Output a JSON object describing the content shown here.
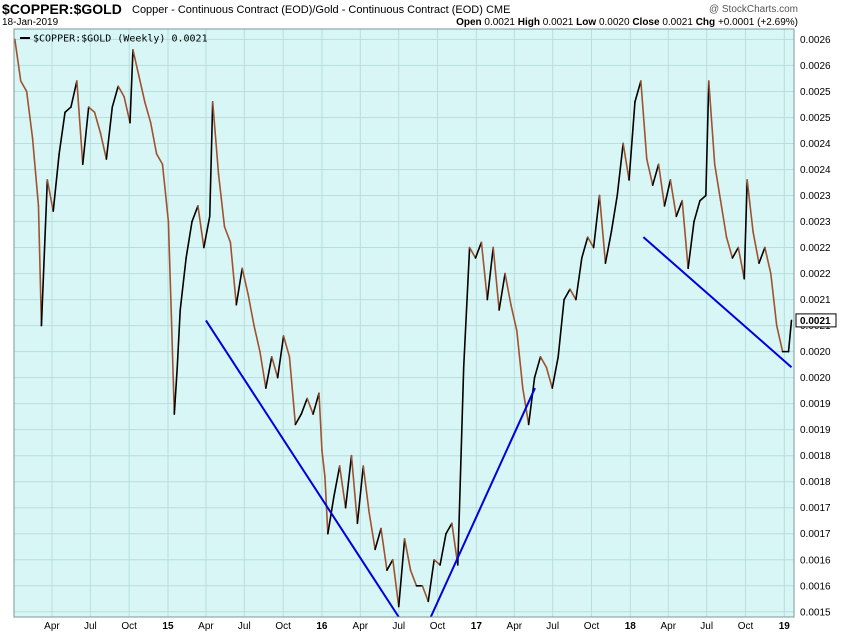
{
  "header": {
    "symbol": "$COPPER:$GOLD",
    "description": "Copper - Continuous Contract (EOD)/Gold - Continuous Contract (EOD) CME",
    "date": "18-Jan-2019",
    "credit": "@ StockCharts.com",
    "open_label": "Open",
    "open": "0.0021",
    "high_label": "High",
    "high": "0.0021",
    "low_label": "Low",
    "low": "0.0020",
    "close_label": "Close",
    "close": "0.0021",
    "chg_label": "Chg",
    "chg": "+0.0001 (+2.69%)"
  },
  "colors": {
    "plot_background": "#d8f6f6",
    "up_line": "#000000",
    "down_line": "#a0522d",
    "trendline": "#0000dd",
    "grid": "#b8dede"
  },
  "chart_data": {
    "type": "line",
    "legend": "$COPPER:$GOLD (Weekly) 0.0021",
    "last_value_label": "0.0021",
    "grid": true,
    "legend_position": "top-left",
    "x_axis_type": "date",
    "ylim": [
      0.00149,
      0.00262
    ],
    "y_ticks": [
      {
        "value": 0.0015,
        "label": "0.0015"
      },
      {
        "value": 0.00155,
        "label": "0.0016"
      },
      {
        "value": 0.0016,
        "label": "0.0016"
      },
      {
        "value": 0.00165,
        "label": "0.0017"
      },
      {
        "value": 0.0017,
        "label": "0.0017"
      },
      {
        "value": 0.00175,
        "label": "0.0018"
      },
      {
        "value": 0.0018,
        "label": "0.0018"
      },
      {
        "value": 0.00185,
        "label": "0.0019"
      },
      {
        "value": 0.0019,
        "label": "0.0019"
      },
      {
        "value": 0.00195,
        "label": "0.0020"
      },
      {
        "value": 0.002,
        "label": "0.0020"
      },
      {
        "value": 0.00205,
        "label": "0.0021"
      },
      {
        "value": 0.0021,
        "label": "0.0021"
      },
      {
        "value": 0.00215,
        "label": "0.0022"
      },
      {
        "value": 0.0022,
        "label": "0.0022"
      },
      {
        "value": 0.00225,
        "label": "0.0023"
      },
      {
        "value": 0.0023,
        "label": "0.0023"
      },
      {
        "value": 0.00235,
        "label": "0.0024"
      },
      {
        "value": 0.0024,
        "label": "0.0024"
      },
      {
        "value": 0.00245,
        "label": "0.0025"
      },
      {
        "value": 0.0025,
        "label": "0.0025"
      },
      {
        "value": 0.00255,
        "label": "0.0026"
      },
      {
        "value": 0.0026,
        "label": "0.0026"
      }
    ],
    "x_ticks": [
      {
        "date": "2014-04-01",
        "label": "Apr",
        "major": false
      },
      {
        "date": "2014-07-01",
        "label": "Jul",
        "major": false
      },
      {
        "date": "2014-10-01",
        "label": "Oct",
        "major": false
      },
      {
        "date": "2015-01-01",
        "label": "15",
        "major": true
      },
      {
        "date": "2015-04-01",
        "label": "Apr",
        "major": false
      },
      {
        "date": "2015-07-01",
        "label": "Jul",
        "major": false
      },
      {
        "date": "2015-10-01",
        "label": "Oct",
        "major": false
      },
      {
        "date": "2016-01-01",
        "label": "16",
        "major": true
      },
      {
        "date": "2016-04-01",
        "label": "Apr",
        "major": false
      },
      {
        "date": "2016-07-01",
        "label": "Jul",
        "major": false
      },
      {
        "date": "2016-10-01",
        "label": "Oct",
        "major": false
      },
      {
        "date": "2017-01-01",
        "label": "17",
        "major": true
      },
      {
        "date": "2017-04-01",
        "label": "Apr",
        "major": false
      },
      {
        "date": "2017-07-01",
        "label": "Jul",
        "major": false
      },
      {
        "date": "2017-10-01",
        "label": "Oct",
        "major": false
      },
      {
        "date": "2018-01-01",
        "label": "18",
        "major": true
      },
      {
        "date": "2018-04-01",
        "label": "Apr",
        "major": false
      },
      {
        "date": "2018-07-01",
        "label": "Jul",
        "major": false
      },
      {
        "date": "2018-10-01",
        "label": "Oct",
        "major": false
      },
      {
        "date": "2019-01-01",
        "label": "19",
        "major": true
      }
    ],
    "series": [
      {
        "values": [
          [
            "2014-01-03",
            0.0026
          ],
          [
            "2014-01-17",
            0.00252
          ],
          [
            "2014-01-31",
            0.0025
          ],
          [
            "2014-02-14",
            0.00241
          ],
          [
            "2014-02-28",
            0.00228
          ],
          [
            "2014-03-07",
            0.00205
          ],
          [
            "2014-03-21",
            0.00233
          ],
          [
            "2014-04-04",
            0.00227
          ],
          [
            "2014-04-18",
            0.00238
          ],
          [
            "2014-05-02",
            0.00246
          ],
          [
            "2014-05-16",
            0.00247
          ],
          [
            "2014-05-30",
            0.00252
          ],
          [
            "2014-06-13",
            0.00236
          ],
          [
            "2014-06-27",
            0.00247
          ],
          [
            "2014-07-11",
            0.00246
          ],
          [
            "2014-07-25",
            0.00242
          ],
          [
            "2014-08-08",
            0.00237
          ],
          [
            "2014-08-22",
            0.00247
          ],
          [
            "2014-09-05",
            0.00251
          ],
          [
            "2014-09-19",
            0.00249
          ],
          [
            "2014-10-03",
            0.00244
          ],
          [
            "2014-10-10",
            0.00258
          ],
          [
            "2014-10-24",
            0.00253
          ],
          [
            "2014-11-07",
            0.00248
          ],
          [
            "2014-11-21",
            0.00244
          ],
          [
            "2014-12-05",
            0.00238
          ],
          [
            "2014-12-19",
            0.00236
          ],
          [
            "2015-01-02",
            0.00225
          ],
          [
            "2015-01-09",
            0.00207
          ],
          [
            "2015-01-16",
            0.00188
          ],
          [
            "2015-01-23",
            0.00197
          ],
          [
            "2015-01-30",
            0.00208
          ],
          [
            "2015-02-13",
            0.00218
          ],
          [
            "2015-02-27",
            0.00225
          ],
          [
            "2015-03-13",
            0.00228
          ],
          [
            "2015-03-27",
            0.0022
          ],
          [
            "2015-04-10",
            0.00226
          ],
          [
            "2015-04-17",
            0.00248
          ],
          [
            "2015-05-01",
            0.00234
          ],
          [
            "2015-05-15",
            0.00224
          ],
          [
            "2015-05-29",
            0.00221
          ],
          [
            "2015-06-12",
            0.00209
          ],
          [
            "2015-06-26",
            0.00216
          ],
          [
            "2015-07-10",
            0.00211
          ],
          [
            "2015-07-24",
            0.00205
          ],
          [
            "2015-08-07",
            0.002
          ],
          [
            "2015-08-21",
            0.00193
          ],
          [
            "2015-09-04",
            0.00199
          ],
          [
            "2015-09-18",
            0.00195
          ],
          [
            "2015-10-02",
            0.00203
          ],
          [
            "2015-10-16",
            0.00199
          ],
          [
            "2015-10-30",
            0.00186
          ],
          [
            "2015-11-13",
            0.00188
          ],
          [
            "2015-11-27",
            0.00191
          ],
          [
            "2015-12-11",
            0.00188
          ],
          [
            "2015-12-25",
            0.00192
          ],
          [
            "2016-01-01",
            0.00181
          ],
          [
            "2016-01-08",
            0.00176
          ],
          [
            "2016-01-15",
            0.00165
          ],
          [
            "2016-01-29",
            0.00172
          ],
          [
            "2016-02-12",
            0.00178
          ],
          [
            "2016-02-26",
            0.0017
          ],
          [
            "2016-03-11",
            0.0018
          ],
          [
            "2016-03-25",
            0.00167
          ],
          [
            "2016-04-08",
            0.00178
          ],
          [
            "2016-04-22",
            0.00169
          ],
          [
            "2016-05-06",
            0.00162
          ],
          [
            "2016-05-20",
            0.00166
          ],
          [
            "2016-06-03",
            0.00158
          ],
          [
            "2016-06-17",
            0.0016
          ],
          [
            "2016-07-01",
            0.00151
          ],
          [
            "2016-07-15",
            0.00164
          ],
          [
            "2016-07-29",
            0.00158
          ],
          [
            "2016-08-12",
            0.00155
          ],
          [
            "2016-08-26",
            0.00155
          ],
          [
            "2016-09-09",
            0.00152
          ],
          [
            "2016-09-23",
            0.0016
          ],
          [
            "2016-10-07",
            0.00159
          ],
          [
            "2016-10-21",
            0.00165
          ],
          [
            "2016-11-04",
            0.00167
          ],
          [
            "2016-11-18",
            0.00159
          ],
          [
            "2016-12-02",
            0.00197
          ],
          [
            "2016-12-16",
            0.0022
          ],
          [
            "2016-12-30",
            0.00218
          ],
          [
            "2017-01-13",
            0.00221
          ],
          [
            "2017-01-27",
            0.0021
          ],
          [
            "2017-02-10",
            0.0022
          ],
          [
            "2017-02-24",
            0.00208
          ],
          [
            "2017-03-10",
            0.00215
          ],
          [
            "2017-03-24",
            0.00209
          ],
          [
            "2017-04-07",
            0.00204
          ],
          [
            "2017-04-21",
            0.00193
          ],
          [
            "2017-05-05",
            0.00186
          ],
          [
            "2017-05-19",
            0.00195
          ],
          [
            "2017-06-02",
            0.00199
          ],
          [
            "2017-06-16",
            0.00197
          ],
          [
            "2017-06-30",
            0.00193
          ],
          [
            "2017-07-14",
            0.00199
          ],
          [
            "2017-07-28",
            0.0021
          ],
          [
            "2017-08-11",
            0.00212
          ],
          [
            "2017-08-25",
            0.0021
          ],
          [
            "2017-09-08",
            0.00218
          ],
          [
            "2017-09-22",
            0.00222
          ],
          [
            "2017-10-06",
            0.0022
          ],
          [
            "2017-10-20",
            0.0023
          ],
          [
            "2017-11-03",
            0.00217
          ],
          [
            "2017-11-17",
            0.00223
          ],
          [
            "2017-12-01",
            0.0023
          ],
          [
            "2017-12-15",
            0.0024
          ],
          [
            "2017-12-29",
            0.00233
          ],
          [
            "2018-01-12",
            0.00248
          ],
          [
            "2018-01-26",
            0.00252
          ],
          [
            "2018-02-09",
            0.00237
          ],
          [
            "2018-02-23",
            0.00232
          ],
          [
            "2018-03-09",
            0.00236
          ],
          [
            "2018-03-23",
            0.00228
          ],
          [
            "2018-04-06",
            0.00233
          ],
          [
            "2018-04-20",
            0.00226
          ],
          [
            "2018-05-04",
            0.00229
          ],
          [
            "2018-05-18",
            0.00216
          ],
          [
            "2018-06-01",
            0.00225
          ],
          [
            "2018-06-15",
            0.00229
          ],
          [
            "2018-06-29",
            0.0023
          ],
          [
            "2018-07-06",
            0.00252
          ],
          [
            "2018-07-20",
            0.00236
          ],
          [
            "2018-08-03",
            0.00229
          ],
          [
            "2018-08-17",
            0.00222
          ],
          [
            "2018-08-31",
            0.00218
          ],
          [
            "2018-09-14",
            0.0022
          ],
          [
            "2018-09-28",
            0.00214
          ],
          [
            "2018-10-05",
            0.00233
          ],
          [
            "2018-10-19",
            0.00223
          ],
          [
            "2018-11-02",
            0.00217
          ],
          [
            "2018-11-16",
            0.0022
          ],
          [
            "2018-11-30",
            0.00215
          ],
          [
            "2018-12-14",
            0.00205
          ],
          [
            "2018-12-28",
            0.002
          ],
          [
            "2019-01-11",
            0.002
          ],
          [
            "2019-01-18",
            0.00206
          ]
        ]
      }
    ],
    "trendlines": [
      {
        "from": [
          "2015-04-01",
          0.00206
        ],
        "to": [
          "2016-07-01",
          0.00149
        ]
      },
      {
        "from": [
          "2016-09-15",
          0.00149
        ],
        "to": [
          "2017-05-20",
          0.00193
        ]
      },
      {
        "from": [
          "2018-02-01",
          0.00222
        ],
        "to": [
          "2019-01-18",
          0.00197
        ]
      }
    ]
  }
}
